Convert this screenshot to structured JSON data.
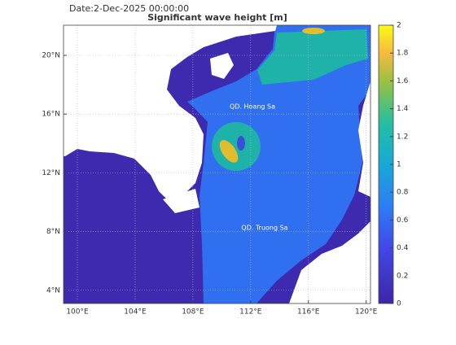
{
  "header": {
    "date": "Date:2-Dec-2025 00:00:00",
    "title": "Significant wave height [m]"
  },
  "map": {
    "xlim": [
      99.04,
      120.3
    ],
    "ylim": [
      3.1,
      22.05
    ],
    "xticks": [
      {
        "value": 100,
        "label": "100°E"
      },
      {
        "value": 104,
        "label": "104°E"
      },
      {
        "value": 108,
        "label": "108°E"
      },
      {
        "value": 112,
        "label": "112°E"
      },
      {
        "value": 116,
        "label": "116°E"
      },
      {
        "value": 120,
        "label": "120°E"
      }
    ],
    "yticks": [
      {
        "value": 4,
        "label": "4°N"
      },
      {
        "value": 8,
        "label": "8°N"
      },
      {
        "value": 12,
        "label": "12°N"
      },
      {
        "value": 16,
        "label": "16°N"
      },
      {
        "value": 20,
        "label": "20°N"
      }
    ],
    "labels": [
      "QD. Hoang Sa",
      "QD. Truong Sa"
    ]
  },
  "colorbar": {
    "lim": [
      0,
      2
    ],
    "ticks": [
      0,
      0.2,
      0.4,
      0.6,
      0.8,
      1,
      1.2,
      1.4,
      1.6,
      1.8,
      2
    ]
  }
}
